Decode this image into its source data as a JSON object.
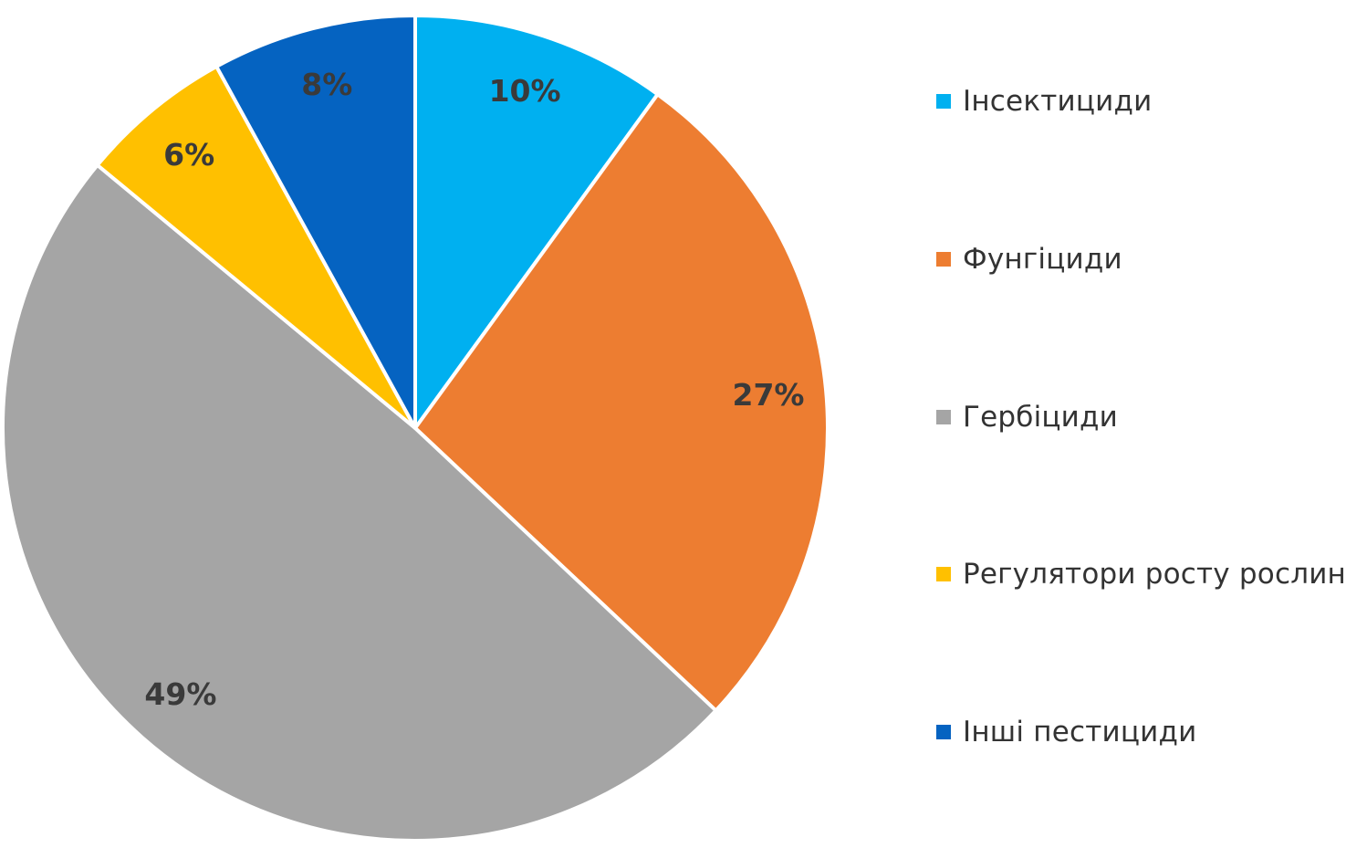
{
  "chart_data": {
    "type": "pie",
    "start": "top",
    "direction": "clockwise",
    "slices": [
      {
        "label": "Інсектициди",
        "value": 10,
        "display": "10%",
        "color": "#00b0f0"
      },
      {
        "label": "Фунгіциди",
        "value": 27,
        "display": "27%",
        "color": "#ed7d31"
      },
      {
        "label": "Гербіциди",
        "value": 49,
        "display": "49%",
        "color": "#a5a5a5"
      },
      {
        "label": "Регулятори росту рослин",
        "value": 6,
        "display": "6%",
        "color": "#ffc000"
      },
      {
        "label": "Інші пестициди",
        "value": 8,
        "display": "8%",
        "color": "#0563c1"
      }
    ],
    "legend_position": "right"
  }
}
